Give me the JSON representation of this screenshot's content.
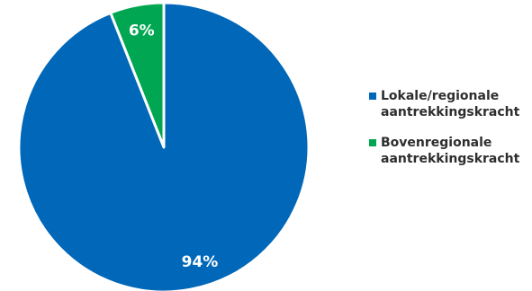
{
  "chart_data": {
    "type": "pie",
    "slices": [
      {
        "label": "Bovenregionale aantrekkingskracht",
        "value": 6,
        "display": "6%",
        "color": "#00a651"
      },
      {
        "label": "Lokale/regionale aantrekkingskracht",
        "value": 94,
        "display": "94%",
        "color": "#0067b9"
      }
    ],
    "legend": {
      "placement": "right",
      "items": [
        {
          "line1": "Lokale/regionale",
          "line2": "aantrekkingskracht",
          "color": "#0067b9"
        },
        {
          "line1": "Bovenregionale",
          "line2": "aantrekkingskracht",
          "color": "#00a651"
        }
      ]
    }
  }
}
